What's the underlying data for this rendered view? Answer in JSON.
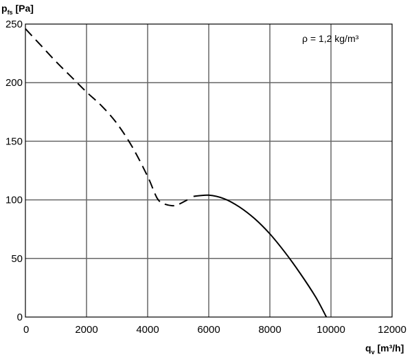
{
  "chart_data": {
    "type": "line",
    "title": "",
    "ylabel_main": "p",
    "ylabel_sub": "fs",
    "ylabel_unit": " [Pa]",
    "xlabel_main": "q",
    "xlabel_sub": "v",
    "xlabel_unit": " [m³/h]",
    "annotation": "ρ = 1,2 kg/m³",
    "xlim": [
      0,
      12000
    ],
    "ylim": [
      0,
      250
    ],
    "xticks": [
      "0",
      "2000",
      "4000",
      "6000",
      "8000",
      "10000",
      "12000"
    ],
    "yticks": [
      "0",
      "50",
      "100",
      "150",
      "200",
      "250"
    ],
    "grid": true,
    "series": [
      {
        "style": "dashed",
        "x": [
          0,
          500,
          1000,
          1500,
          2000,
          2500,
          3000,
          3500,
          4000,
          4300,
          4500,
          4800,
          5000,
          5300
        ],
        "y": [
          246,
          232,
          218,
          205,
          192,
          180,
          165,
          145,
          120,
          102,
          97,
          95,
          96,
          100
        ]
      },
      {
        "style": "solid",
        "x": [
          5500,
          6000,
          6500,
          7000,
          7500,
          8000,
          8500,
          9000,
          9500,
          9850
        ],
        "y": [
          103,
          104,
          101,
          94,
          84,
          71,
          55,
          37,
          17,
          0
        ]
      }
    ]
  }
}
